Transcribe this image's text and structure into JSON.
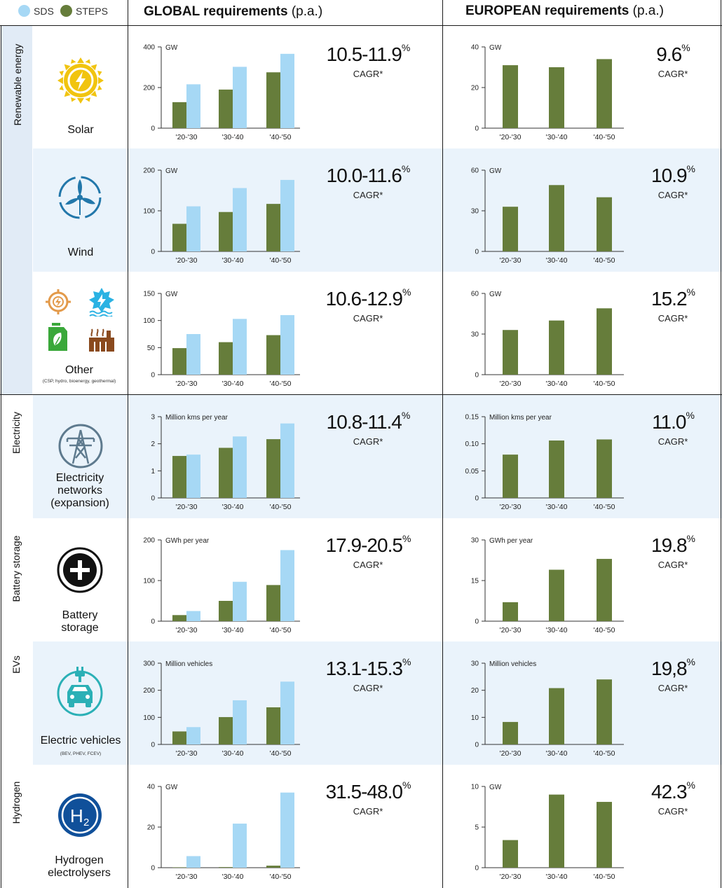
{
  "colors": {
    "sds": "#a6d8f5",
    "steps": "#667d3b",
    "band": "#eaf3fb",
    "sidebar": "#e1ebf6"
  },
  "legend": {
    "sds": "SDS",
    "steps": "STEPS"
  },
  "headers": {
    "global_bold": "GLOBAL requirements",
    "global_rest": "(p.a.)",
    "european_bold": "EUROPEAN requirements",
    "european_rest": "(p.a.)"
  },
  "categories": {
    "renewable": "Renewable energy",
    "electricity": "Electricity",
    "battery": "Battery storage",
    "evs": "EVs",
    "hydrogen": "Hydrogen"
  },
  "cagr_label": "CAGR*",
  "rows": [
    {
      "label": "Solar",
      "note": "",
      "icon": "solar-icon",
      "global_cagr": "10.5-11.9",
      "european_cagr": "9.6"
    },
    {
      "label": "Wind",
      "note": "",
      "icon": "wind-turbine-icon",
      "global_cagr": "10.0-11.6",
      "european_cagr": "10.9"
    },
    {
      "label": "Other",
      "note": "(CSP, hydro, bioenergy, geothermal)",
      "icon": "other-renewables-icon",
      "global_cagr": "10.6-12.9",
      "european_cagr": "15.2"
    },
    {
      "label": "Electricity networks (expansion)",
      "note": "",
      "icon": "transmission-tower-icon",
      "global_cagr": "10.8-11.4",
      "european_cagr": "11.0"
    },
    {
      "label": "Battery storage",
      "note": "",
      "icon": "battery-plus-icon",
      "global_cagr": "17.9-20.5",
      "european_cagr": "19.8"
    },
    {
      "label": "Electric vehicles",
      "note": "(BEV, PHEV, FCEV)",
      "icon": "electric-car-icon",
      "global_cagr": "13.1-15.3",
      "european_cagr": "19,8"
    },
    {
      "label": "Hydrogen electrolysers",
      "note": "",
      "icon": "h2-icon",
      "global_cagr": "31.5-48.0",
      "european_cagr": "42.3"
    }
  ],
  "pct": "%",
  "chart_data": [
    {
      "id": "global-solar",
      "type": "bar",
      "unit": "GW",
      "categories": [
        "'20-'30",
        "'30-'40",
        "'40-'50"
      ],
      "yticks": [
        "0",
        "200",
        "400"
      ],
      "ylim": [
        0,
        400
      ],
      "series": [
        {
          "name": "STEPS",
          "values": [
            128,
            190,
            275
          ]
        },
        {
          "name": "SDS",
          "values": [
            216,
            302,
            366
          ]
        }
      ]
    },
    {
      "id": "european-solar",
      "type": "bar",
      "unit": "GW",
      "categories": [
        "'20-'30",
        "'30-'40",
        "'40-'50"
      ],
      "yticks": [
        "0",
        "20",
        "40"
      ],
      "ylim": [
        0,
        40
      ],
      "series": [
        {
          "name": "STEPS",
          "values": [
            31,
            30,
            34
          ]
        }
      ]
    },
    {
      "id": "global-wind",
      "type": "bar",
      "unit": "GW",
      "categories": [
        "'20-'30",
        "'30-'40",
        "'40-'50"
      ],
      "yticks": [
        "0",
        "100",
        "200"
      ],
      "ylim": [
        0,
        200
      ],
      "series": [
        {
          "name": "STEPS",
          "values": [
            68,
            97,
            117
          ]
        },
        {
          "name": "SDS",
          "values": [
            111,
            156,
            176
          ]
        }
      ]
    },
    {
      "id": "european-wind",
      "type": "bar",
      "unit": "GW",
      "categories": [
        "'20-'30",
        "'30-'40",
        "'40-'50"
      ],
      "yticks": [
        "0",
        "30",
        "60"
      ],
      "ylim": [
        0,
        60
      ],
      "series": [
        {
          "name": "STEPS",
          "values": [
            33,
            49,
            40
          ]
        }
      ]
    },
    {
      "id": "global-other",
      "type": "bar",
      "unit": "GW",
      "categories": [
        "'20-'30",
        "'30-'40",
        "'40-'50"
      ],
      "yticks": [
        "0",
        "50",
        "100",
        "150"
      ],
      "ylim": [
        0,
        150
      ],
      "series": [
        {
          "name": "STEPS",
          "values": [
            49,
            60,
            73
          ]
        },
        {
          "name": "SDS",
          "values": [
            75,
            103,
            110
          ]
        }
      ]
    },
    {
      "id": "european-other",
      "type": "bar",
      "unit": "GW",
      "categories": [
        "'20-'30",
        "'30-'40",
        "'40-'50"
      ],
      "yticks": [
        "0",
        "30",
        "60"
      ],
      "ylim": [
        0,
        60
      ],
      "series": [
        {
          "name": "STEPS",
          "values": [
            33,
            40,
            49
          ]
        }
      ]
    },
    {
      "id": "global-electricity",
      "type": "bar",
      "unit": "Million kms per year",
      "categories": [
        "'20-'30",
        "'30-'40",
        "'40-'50"
      ],
      "yticks": [
        "0",
        "1",
        "2",
        "3"
      ],
      "ylim": [
        0,
        3
      ],
      "series": [
        {
          "name": "STEPS",
          "values": [
            1.55,
            1.85,
            2.17
          ]
        },
        {
          "name": "SDS",
          "values": [
            1.6,
            2.27,
            2.75
          ]
        }
      ]
    },
    {
      "id": "european-electricity",
      "type": "bar",
      "unit": "Million kms per year",
      "categories": [
        "'20-'30",
        "'30-'40",
        "'40-'50"
      ],
      "yticks": [
        "0",
        "0.05",
        "0.10",
        "0.15"
      ],
      "ylim": [
        0,
        0.15
      ],
      "series": [
        {
          "name": "STEPS",
          "values": [
            0.08,
            0.106,
            0.108
          ]
        }
      ]
    },
    {
      "id": "global-battery",
      "type": "bar",
      "unit": "GWh per year",
      "categories": [
        "'20-'30",
        "'30-'40",
        "'40-'50"
      ],
      "yticks": [
        "0",
        "100",
        "200"
      ],
      "ylim": [
        0,
        200
      ],
      "series": [
        {
          "name": "STEPS",
          "values": [
            15,
            50,
            89
          ]
        },
        {
          "name": "SDS",
          "values": [
            25,
            97,
            175
          ]
        }
      ]
    },
    {
      "id": "european-battery",
      "type": "bar",
      "unit": "GWh per year",
      "categories": [
        "'20-'30",
        "'30-'40",
        "'40-'50"
      ],
      "yticks": [
        "0",
        "15",
        "30"
      ],
      "ylim": [
        0,
        30
      ],
      "series": [
        {
          "name": "STEPS",
          "values": [
            7,
            19,
            23
          ]
        }
      ]
    },
    {
      "id": "global-evs",
      "type": "bar",
      "unit": "Million vehicles",
      "categories": [
        "'20-'30",
        "'30-'40",
        "'40-'50"
      ],
      "yticks": [
        "0",
        "100",
        "200",
        "300"
      ],
      "ylim": [
        0,
        300
      ],
      "series": [
        {
          "name": "STEPS",
          "values": [
            48,
            101,
            137
          ]
        },
        {
          "name": "SDS",
          "values": [
            64,
            163,
            232
          ]
        }
      ]
    },
    {
      "id": "european-evs",
      "type": "bar",
      "unit": "Million vehicles",
      "categories": [
        "'20-'30",
        "'30-'40",
        "'40-'50"
      ],
      "yticks": [
        "0",
        "10",
        "20",
        "30"
      ],
      "ylim": [
        0,
        30
      ],
      "series": [
        {
          "name": "STEPS",
          "values": [
            8.3,
            20.8,
            24
          ]
        }
      ]
    },
    {
      "id": "global-hydrogen",
      "type": "bar",
      "unit": "GW",
      "categories": [
        "'20-'30",
        "'30-'40",
        "'40-'50"
      ],
      "yticks": [
        "0",
        "20",
        "40"
      ],
      "ylim": [
        0,
        40
      ],
      "series": [
        {
          "name": "STEPS",
          "values": [
            0.2,
            0.3,
            1
          ]
        },
        {
          "name": "SDS",
          "values": [
            5.7,
            21.7,
            37
          ]
        }
      ]
    },
    {
      "id": "european-hydrogen",
      "type": "bar",
      "unit": "GW",
      "categories": [
        "'20-'30",
        "'30-'40",
        "'40-'50"
      ],
      "yticks": [
        "0",
        "5",
        "10"
      ],
      "ylim": [
        0,
        10
      ],
      "series": [
        {
          "name": "STEPS",
          "values": [
            3.4,
            9,
            8.1
          ]
        }
      ]
    }
  ]
}
